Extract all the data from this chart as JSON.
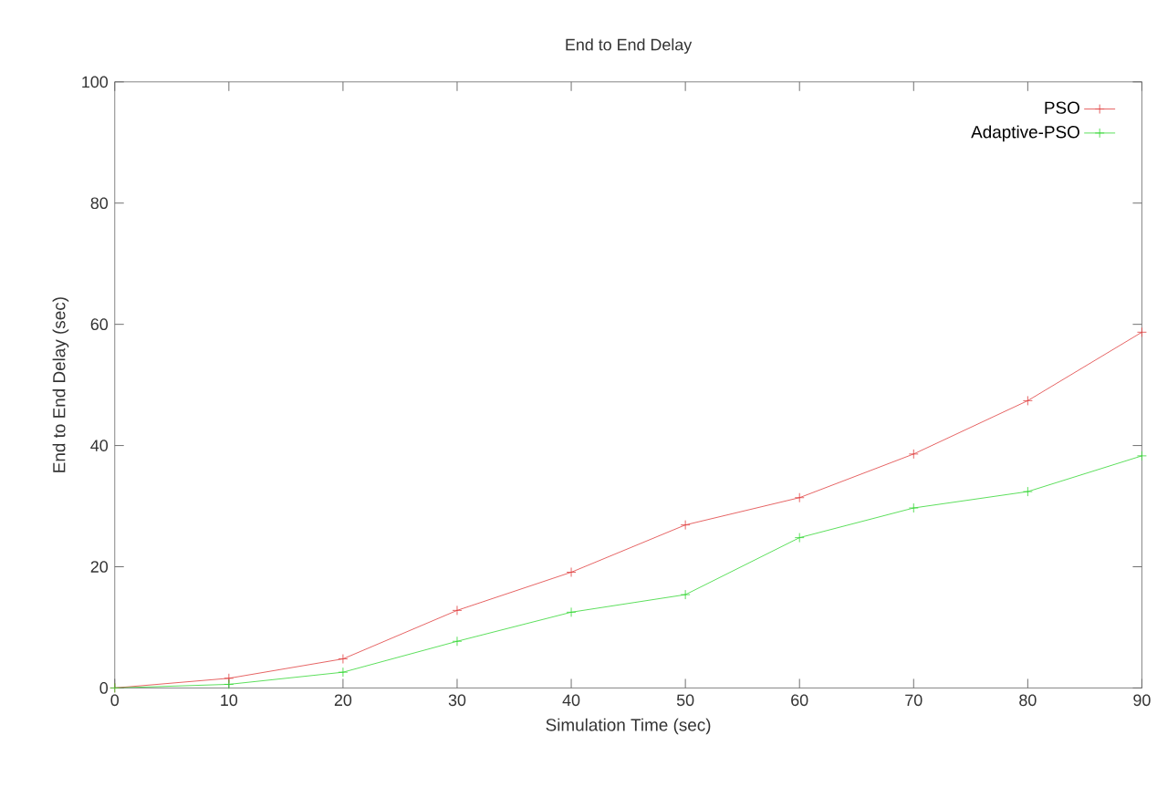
{
  "chart_data": {
    "type": "line",
    "title": "End to End Delay",
    "xlabel": "Simulation Time (sec)",
    "ylabel": "End to End Delay (sec)",
    "x": [
      0,
      10,
      20,
      30,
      40,
      50,
      60,
      70,
      80,
      90
    ],
    "series": [
      {
        "name": "PSO",
        "color": "#e03c3c",
        "marker": "cross",
        "values": [
          0,
          1.6,
          4.8,
          12.8,
          19.1,
          26.9,
          31.4,
          38.6,
          47.4,
          58.7
        ]
      },
      {
        "name": "Adaptive-PSO",
        "color": "#33d633",
        "marker": "cross",
        "values": [
          0,
          0.6,
          2.6,
          7.7,
          12.5,
          15.4,
          24.8,
          29.7,
          32.4,
          38.3
        ]
      }
    ],
    "xlim": [
      0,
      90
    ],
    "ylim": [
      0,
      100
    ],
    "xticks": [
      0,
      10,
      20,
      30,
      40,
      50,
      60,
      70,
      80,
      90
    ],
    "yticks": [
      0,
      20,
      40,
      60,
      80,
      100
    ],
    "grid": false,
    "legend": "top right",
    "line_style": "solid"
  }
}
